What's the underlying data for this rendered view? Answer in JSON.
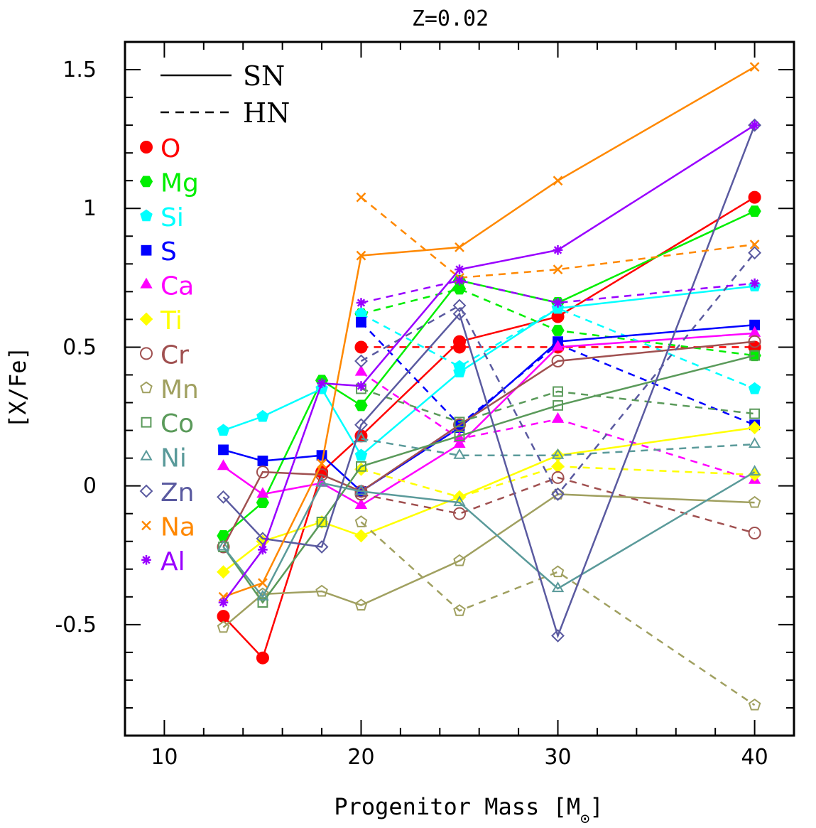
{
  "chart_data": {
    "type": "line",
    "title": "Z=0.02",
    "xlabel": "Progenitor Mass [M",
    "xlabel_sub": "⊙",
    "xlabel_end": "]",
    "ylabel": "[X/Fe]",
    "xlim": [
      8,
      42
    ],
    "ylim": [
      -0.9,
      1.6
    ],
    "xticks": [
      10,
      20,
      30,
      40
    ],
    "xtick_labels": [
      "10",
      "20",
      "30",
      "40"
    ],
    "yticks": [
      -0.5,
      0,
      0.5,
      1,
      1.5
    ],
    "ytick_labels": [
      "-0.5",
      "0",
      "0.5",
      "1",
      "1.5"
    ],
    "x_minor_step": 2,
    "y_minor_step": 0.1,
    "grid": false,
    "legend_position": "top-left",
    "line_styles": [
      {
        "label": "SN",
        "dash": "solid"
      },
      {
        "label": "HN",
        "dash": "dashed"
      }
    ],
    "sn_masses": [
      13,
      15,
      18,
      20,
      25,
      30,
      40
    ],
    "hn_masses": [
      20,
      25,
      30,
      40
    ],
    "series": [
      {
        "name": "O",
        "color": "#ff0000",
        "marker": "filled-circle",
        "sn": [
          -0.47,
          -0.62,
          0.05,
          0.18,
          0.52,
          0.61,
          1.04
        ],
        "hn": [
          0.5,
          0.5,
          0.5,
          0.5
        ]
      },
      {
        "name": "Mg",
        "color": "#00ee00",
        "marker": "filled-hexagon",
        "sn": [
          -0.18,
          -0.06,
          0.38,
          0.29,
          0.74,
          0.66,
          0.99
        ],
        "hn": [
          0.62,
          0.71,
          0.56,
          0.47
        ]
      },
      {
        "name": "Si",
        "color": "#00ffff",
        "marker": "filled-pentagon",
        "sn": [
          0.2,
          0.25,
          0.35,
          0.11,
          0.41,
          0.64,
          0.72
        ],
        "hn": [
          0.62,
          0.43,
          0.64,
          0.35
        ]
      },
      {
        "name": "S",
        "color": "#0000ff",
        "marker": "filled-square",
        "sn": [
          0.13,
          0.09,
          0.11,
          -0.02,
          0.21,
          0.52,
          0.58
        ],
        "hn": [
          0.59,
          0.22,
          0.51,
          0.22
        ]
      },
      {
        "name": "Ca",
        "color": "#ff00ff",
        "marker": "filled-triangle",
        "sn": [
          0.07,
          -0.03,
          0.01,
          -0.07,
          0.15,
          0.5,
          0.55
        ],
        "hn": [
          0.41,
          0.17,
          0.24,
          0.02
        ]
      },
      {
        "name": "Ti",
        "color": "#ffff00",
        "marker": "filled-diamond",
        "sn": [
          -0.31,
          -0.2,
          -0.13,
          -0.18,
          -0.04,
          0.11,
          0.21
        ],
        "hn": [
          0.06,
          -0.04,
          0.07,
          0.04
        ]
      },
      {
        "name": "Cr",
        "color": "#a05050",
        "marker": "open-circle",
        "sn": [
          -0.22,
          0.05,
          0.04,
          -0.02,
          0.22,
          0.45,
          0.52
        ],
        "hn": [
          -0.03,
          -0.1,
          0.03,
          -0.17
        ]
      },
      {
        "name": "Mn",
        "color": "#a0a060",
        "marker": "open-pentagon",
        "sn": [
          -0.51,
          -0.39,
          -0.38,
          -0.43,
          -0.27,
          -0.03,
          -0.06
        ],
        "hn": [
          -0.13,
          -0.45,
          -0.31,
          -0.79
        ]
      },
      {
        "name": "Co",
        "color": "#5a9a5a",
        "marker": "open-square",
        "sn": [
          -0.22,
          -0.42,
          -0.13,
          0.07,
          0.18,
          0.29,
          0.47
        ],
        "hn": [
          0.35,
          0.23,
          0.34,
          0.26
        ]
      },
      {
        "name": "Ni",
        "color": "#5a9a9a",
        "marker": "open-triangle",
        "sn": [
          -0.22,
          -0.4,
          0.01,
          -0.02,
          -0.06,
          -0.37,
          0.05
        ],
        "hn": [
          0.17,
          0.11,
          0.11,
          0.15
        ]
      },
      {
        "name": "Zn",
        "color": "#5a5aa0",
        "marker": "open-diamond",
        "sn": [
          -0.04,
          -0.19,
          -0.22,
          0.22,
          0.62,
          -0.54,
          1.3
        ],
        "hn": [
          0.45,
          0.65,
          -0.03,
          0.84
        ]
      },
      {
        "name": "Na",
        "color": "#ff8800",
        "marker": "cross",
        "sn": [
          -0.4,
          -0.35,
          0.08,
          0.83,
          0.86,
          1.1,
          1.51
        ],
        "hn": [
          1.04,
          0.75,
          0.78,
          0.87
        ]
      },
      {
        "name": "Al",
        "color": "#9900ff",
        "marker": "asterisk",
        "sn": [
          -0.42,
          -0.23,
          0.37,
          0.36,
          0.78,
          0.85,
          1.3
        ],
        "hn": [
          0.66,
          0.74,
          0.66,
          0.73
        ]
      }
    ]
  }
}
